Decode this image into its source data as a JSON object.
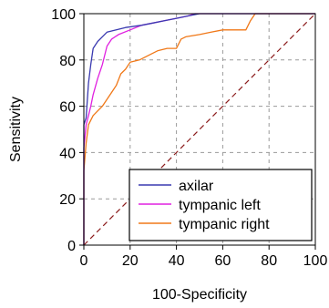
{
  "chart_data": {
    "type": "line",
    "title": "",
    "xlabel": "100-Specificity",
    "ylabel": "Sensitivity",
    "xlim": [
      0,
      100
    ],
    "ylim": [
      0,
      100
    ],
    "xticks": [
      0,
      20,
      40,
      60,
      80,
      100
    ],
    "yticks": [
      0,
      20,
      40,
      60,
      80,
      100
    ],
    "xtick_labels": [
      "0",
      "20",
      "40",
      "60",
      "80",
      "100"
    ],
    "ytick_labels": [
      "0",
      "20",
      "40",
      "60",
      "80",
      "100"
    ],
    "grid": true,
    "legend_position": "bottom-right",
    "diagonal_reference": {
      "color": "#8b1a1a",
      "style": "dashed",
      "x": [
        0,
        100
      ],
      "y": [
        0,
        100
      ]
    },
    "series": [
      {
        "name": "axilar",
        "color": "#3a3ab0",
        "x": [
          0,
          0,
          1,
          2,
          3,
          4,
          6,
          8,
          10,
          14,
          18,
          25,
          30,
          35,
          40,
          45,
          50,
          55,
          60,
          70,
          80,
          90,
          100
        ],
        "y": [
          0,
          52,
          55,
          70,
          78,
          85,
          88,
          90,
          92,
          93,
          94,
          95,
          96,
          97,
          98,
          99,
          100,
          100,
          100,
          100,
          100,
          100,
          100
        ]
      },
      {
        "name": "tympanic left",
        "color": "#e020e0",
        "x": [
          0,
          0,
          1,
          2,
          3,
          4,
          6,
          8,
          10,
          12,
          15,
          20,
          25,
          30,
          35,
          40,
          45,
          48,
          50,
          60,
          70,
          75,
          80,
          90,
          100
        ],
        "y": [
          0,
          42,
          52,
          56,
          60,
          65,
          72,
          78,
          86,
          89,
          91,
          93,
          95,
          96,
          97,
          98,
          99,
          100,
          100,
          100,
          100,
          100,
          100,
          100,
          100
        ]
      },
      {
        "name": "tympanic right",
        "color": "#f07818",
        "x": [
          0,
          0,
          1,
          2,
          4,
          6,
          8,
          10,
          12,
          14,
          16,
          18,
          20,
          24,
          28,
          32,
          36,
          40,
          42,
          44,
          50,
          55,
          60,
          62,
          66,
          70,
          72,
          74,
          80,
          90,
          100
        ],
        "y": [
          0,
          32,
          44,
          52,
          56,
          58,
          60,
          63,
          66,
          69,
          74,
          76,
          79,
          80,
          82,
          84,
          85,
          85,
          89,
          90,
          91,
          92,
          93,
          93,
          93,
          93,
          97,
          100,
          100,
          100,
          100
        ]
      }
    ]
  }
}
